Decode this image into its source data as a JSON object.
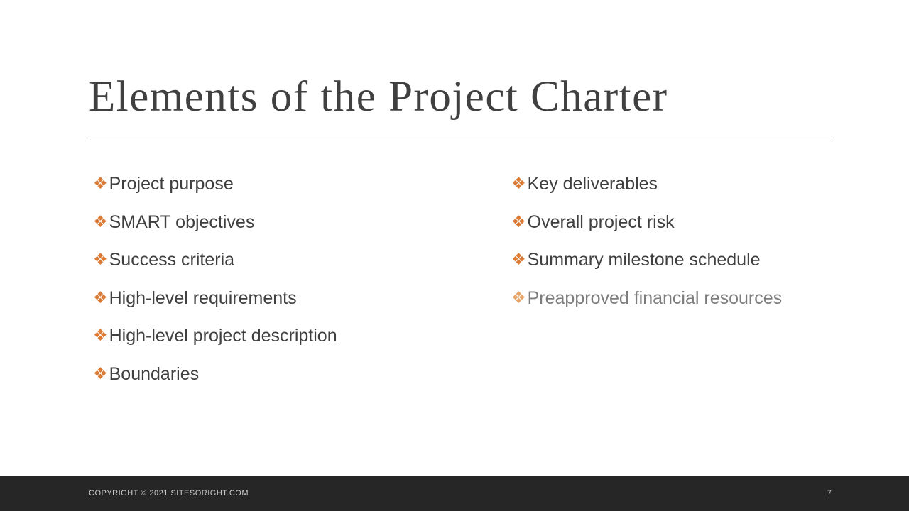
{
  "slide": {
    "title": "Elements of the Project Charter",
    "bullet_glyph": "❖",
    "lists": {
      "left": [
        {
          "label": "Project purpose",
          "muted": false
        },
        {
          "label": "SMART objectives",
          "muted": false
        },
        {
          "label": "Success criteria",
          "muted": false
        },
        {
          "label": "High-level requirements",
          "muted": false
        },
        {
          "label": "High-level project description",
          "muted": false
        },
        {
          "label": "Boundaries",
          "muted": false
        }
      ],
      "right": [
        {
          "label": "Key deliverables",
          "muted": false
        },
        {
          "label": "Overall project risk",
          "muted": false
        },
        {
          "label": "Summary milestone schedule",
          "muted": false
        },
        {
          "label": "Preapproved financial resources",
          "muted": true
        }
      ]
    },
    "footer": {
      "copyright": "COPYRIGHT © 2021 SITESORIGHT.COM",
      "page_number": "7"
    },
    "colors": {
      "bullet_orange": "#dc7b35",
      "bullet_orange_faded": "#e7a76c",
      "text_dark": "#404040",
      "text_muted": "#7d7d7d",
      "footer_background": "#262626",
      "footer_text": "#cccccc"
    }
  }
}
